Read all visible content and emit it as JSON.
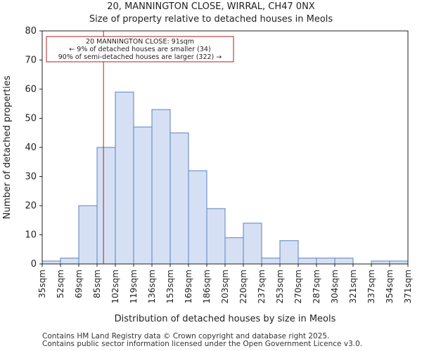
{
  "title_line1": "20, MANNINGTON CLOSE, WIRRAL, CH47 0NX",
  "title_line2": "Size of property relative to detached houses in Meols",
  "chart_data": {
    "type": "bar",
    "title": "Size of property relative to detached houses in Meols",
    "xlabel": "Distribution of detached houses by size in Meols",
    "ylabel": "Number of detached properties",
    "ylim": [
      0,
      80
    ],
    "yticks": [
      0,
      10,
      20,
      30,
      40,
      50,
      60,
      70,
      80
    ],
    "bin_edges": [
      35,
      52,
      69,
      85,
      102,
      119,
      136,
      153,
      169,
      186,
      203,
      220,
      237,
      253,
      270,
      287,
      304,
      321,
      337,
      354,
      371
    ],
    "edge_labels": [
      "35sqm",
      "52sqm",
      "69sqm",
      "85sqm",
      "102sqm",
      "119sqm",
      "136sqm",
      "153sqm",
      "169sqm",
      "186sqm",
      "203sqm",
      "220sqm",
      "237sqm",
      "253sqm",
      "270sqm",
      "287sqm",
      "304sqm",
      "321sqm",
      "337sqm",
      "354sqm",
      "371sqm"
    ],
    "values": [
      1,
      2,
      20,
      40,
      59,
      47,
      53,
      45,
      32,
      19,
      9,
      14,
      2,
      8,
      2,
      2,
      2,
      0,
      1,
      1
    ],
    "marker_value": 91,
    "bar_fill": "#d6e0f5",
    "bar_stroke": "#5a82bd",
    "marker_color": "#b22222",
    "annotation": {
      "line1": "20 MANNINGTON CLOSE: 91sqm",
      "line2": "← 9% of detached houses are smaller (34)",
      "line3": "90% of semi-detached houses are larger (322) →"
    }
  },
  "footer": {
    "line1": "Contains HM Land Registry data © Crown copyright and database right 2025.",
    "line2": "Contains public sector information licensed under the Open Government Licence v3.0."
  }
}
